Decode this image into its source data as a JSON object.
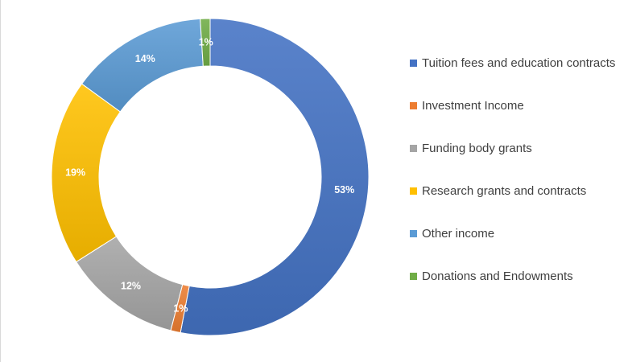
{
  "chart_data": {
    "type": "pie",
    "subtype": "donut",
    "legend_position": "right",
    "categories": [
      "Tuition fees and education contracts",
      "Investment Income",
      "Funding body grants",
      "Research grants and contracts",
      "Other income",
      "Donations and Endowments"
    ],
    "values": [
      53,
      1,
      12,
      19,
      14,
      1
    ],
    "labels": [
      "53%",
      "1%",
      "12%",
      "19%",
      "14%",
      "1%"
    ],
    "colors": [
      "#4472c4",
      "#ed7d31",
      "#a5a5a5",
      "#ffc000",
      "#5b9bd5",
      "#70ad47"
    ]
  }
}
